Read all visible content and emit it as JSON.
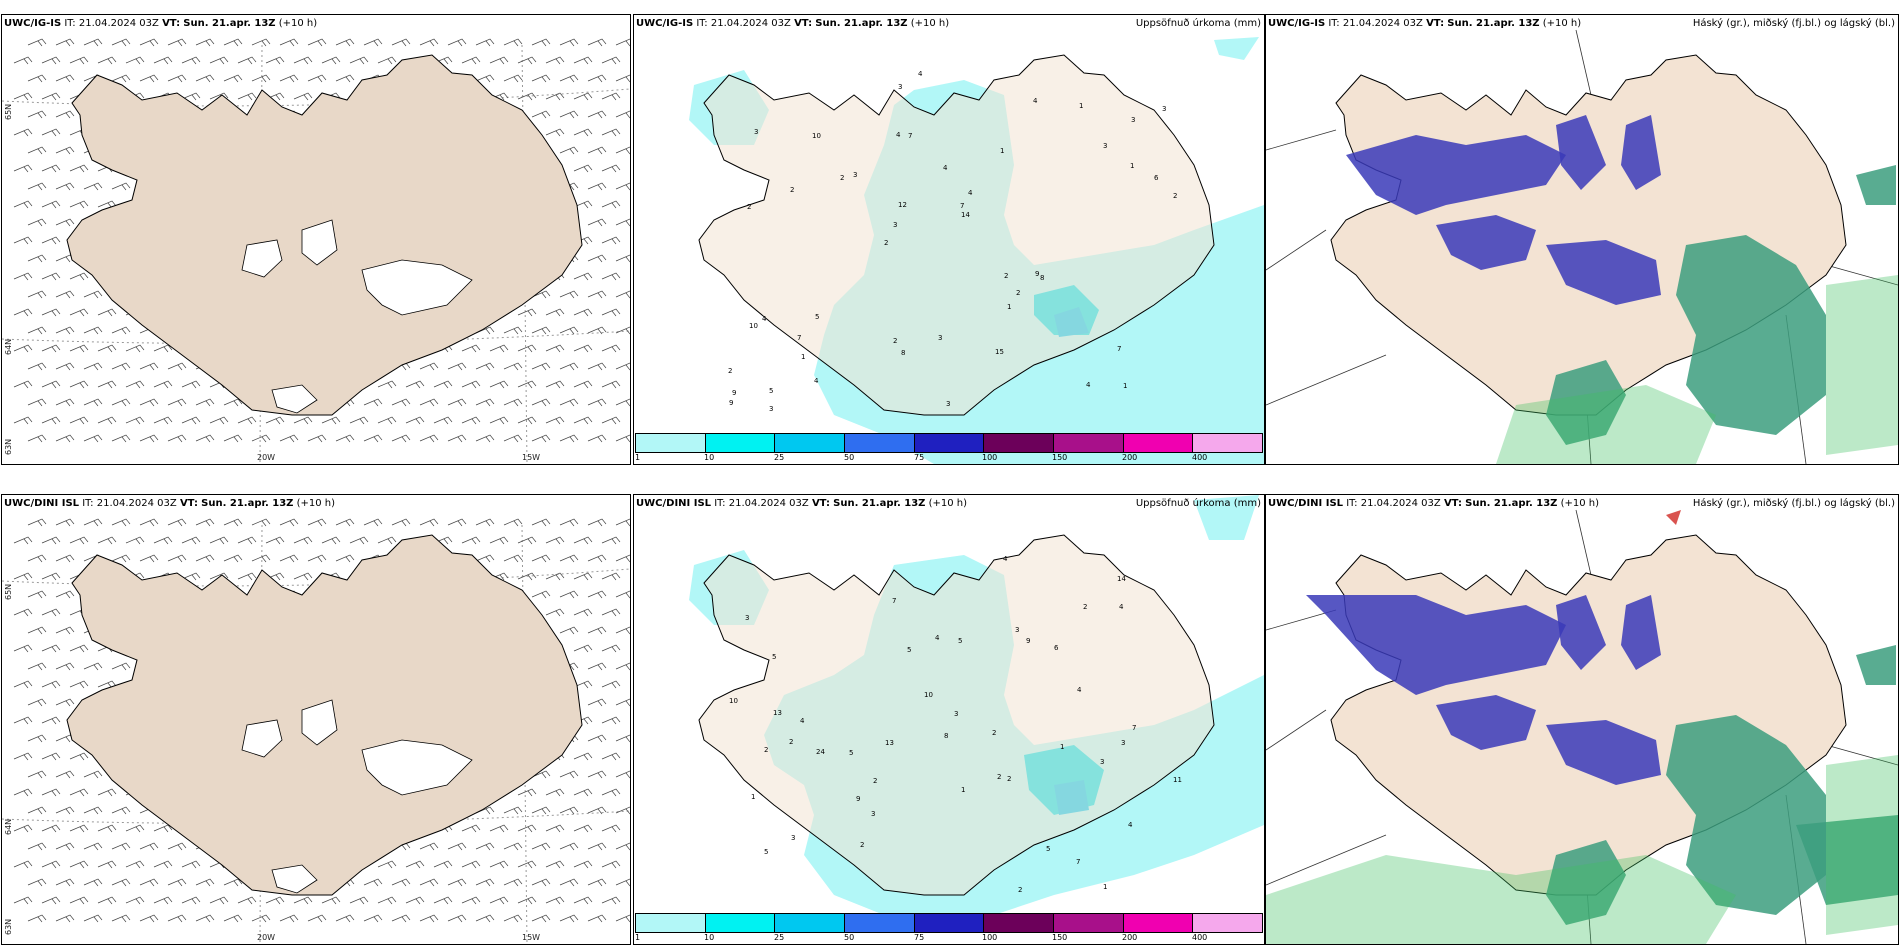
{
  "panels": [
    {
      "model": "UWC/IG-IS",
      "it": "IT: 21.04.2024 03Z",
      "vt_label": "VT:",
      "vt_value": "Sun. 21.apr. 13Z",
      "lead": "(+10 h)",
      "right_label": ""
    },
    {
      "model": "UWC/IG-IS",
      "it": "IT: 21.04.2024 03Z",
      "vt_label": "VT:",
      "vt_value": "Sun. 21.apr. 13Z",
      "lead": "(+10 h)",
      "right_label": "Uppsöfnuð úrkoma (mm)"
    },
    {
      "model": "UWC/IG-IS",
      "it": "IT: 21.04.2024 03Z",
      "vt_label": "VT:",
      "vt_value": "Sun. 21.apr. 13Z",
      "lead": "(+10 h)",
      "right_label": "Háský (gr.), miðský (fj.bl.) og lágský (bl.)"
    },
    {
      "model": "UWC/DINI ISL",
      "it": "IT: 21.04.2024 03Z",
      "vt_label": "VT:",
      "vt_value": "Sun. 21.apr. 13Z",
      "lead": "(+10 h)",
      "right_label": ""
    },
    {
      "model": "UWC/DINI ISL",
      "it": "IT: 21.04.2024 03Z",
      "vt_label": "VT:",
      "vt_value": "Sun. 21.apr. 13Z",
      "lead": "(+10 h)",
      "right_label": "Uppsöfnuð úrkoma (mm)"
    },
    {
      "model": "UWC/DINI ISL",
      "it": "IT: 21.04.2024 03Z",
      "vt_label": "VT:",
      "vt_value": "Sun. 21.apr. 13Z",
      "lead": "(+10 h)",
      "right_label": "Háský (gr.), miðský (fj.bl.) og lágský (bl.)"
    }
  ],
  "axes": {
    "lon_labels": [
      "20W",
      "15W"
    ],
    "lat_labels": [
      "65N",
      "64N",
      "63N"
    ]
  },
  "colorbar": {
    "ticks": [
      "1",
      "10",
      "25",
      "50",
      "75",
      "100",
      "150",
      "200",
      "400"
    ],
    "colors": [
      "#b2f7f7",
      "#00f2f2",
      "#00c8f0",
      "#2f6ef0",
      "#1f20c0",
      "#6c005a",
      "#a8108a",
      "#f000b0",
      "#f5a8ec"
    ]
  },
  "colors": {
    "land": "#f3e3d3",
    "land_wind": "#e8d8c8",
    "precip_light": "#b2f7f7",
    "precip_mid": "#00e0e8",
    "high_cloud": "#3a3ab8",
    "mid_cloud": "#3c9e7e",
    "low_cloud": "#40c060"
  },
  "precip_labels_top": [
    "1",
    "2",
    "3",
    "2",
    "1",
    "5",
    "4",
    "4",
    "4",
    "3",
    "2",
    "1",
    "7",
    "4",
    "8",
    "3",
    "3",
    "2",
    "2",
    "1",
    "3",
    "2",
    "12",
    "10",
    "4",
    "5",
    "4",
    "7",
    "9",
    "3",
    "2",
    "2",
    "1",
    "4",
    "6",
    "7",
    "9",
    "8",
    "14",
    "10",
    "3",
    "3",
    "2",
    "15",
    "7",
    "3",
    "9",
    "3",
    "1",
    "4"
  ],
  "precip_labels_bottom": [
    "1",
    "2",
    "2",
    "3",
    "4",
    "5",
    "3",
    "5",
    "6",
    "4",
    "9",
    "7",
    "3",
    "7",
    "2",
    "1",
    "1",
    "3",
    "10",
    "5",
    "14",
    "5",
    "4",
    "11",
    "7",
    "13",
    "24",
    "8",
    "10",
    "4",
    "2",
    "2",
    "9",
    "3",
    "5",
    "3",
    "3",
    "5",
    "2",
    "2",
    "2",
    "1",
    "2",
    "4",
    "13",
    "4"
  ]
}
